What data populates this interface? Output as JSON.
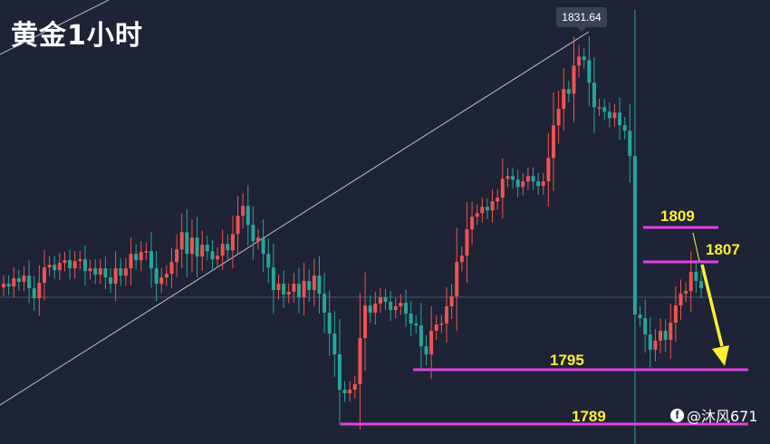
{
  "title": "黄金1小时",
  "peak_label": "1831.64",
  "watermark": {
    "text": "@沐风671",
    "icon": "weibo-icon"
  },
  "colors": {
    "background": "#1e2335",
    "up": "#ef5350",
    "down": "#26a69a",
    "level_line": "#e23fe6",
    "level_text": "#ffee33",
    "arrow": "#ffee33",
    "trendline": "#b9bcc4"
  },
  "chart_data": {
    "type": "candlestick",
    "instrument": "黄金",
    "timeframe": "1小时",
    "ylim": [
      1785,
      1834
    ],
    "peak": 1831.64,
    "levels": [
      {
        "label": "1809",
        "value": 1809
      },
      {
        "label": "1807",
        "value": 1807
      },
      {
        "label": "1795",
        "value": 1795
      },
      {
        "label": "1789",
        "value": 1789
      }
    ],
    "candles_close": [
      1804.5,
      1804.2,
      1805.1,
      1804.7,
      1805.4,
      1804.0,
      1802.9,
      1804.6,
      1806.3,
      1806.6,
      1806.0,
      1806.8,
      1807.1,
      1806.2,
      1807.0,
      1807.2,
      1805.9,
      1806.2,
      1805.5,
      1806.2,
      1805.2,
      1804.5,
      1806.2,
      1805.4,
      1806.2,
      1807.8,
      1807.1,
      1808.0,
      1808.1,
      1806.2,
      1804.5,
      1805.2,
      1805.6,
      1806.9,
      1808.3,
      1810.2,
      1807.8,
      1809.6,
      1807.5,
      1808.8,
      1808.1,
      1807.2,
      1807.6,
      1808.9,
      1808.2,
      1810.0,
      1812.0,
      1813.1,
      1811.0,
      1809.2,
      1809.6,
      1807.8,
      1806.3,
      1803.8,
      1804.5,
      1803.3,
      1803.6,
      1804.5,
      1803.0,
      1804.8,
      1803.8,
      1805.4,
      1803.4,
      1801.3,
      1799.0,
      1796.7,
      1792.8,
      1792.4,
      1792.8,
      1793.4,
      1798.5,
      1802.1,
      1801.3,
      1802.3,
      1803.0,
      1802.5,
      1801.6,
      1802.0,
      1802.4,
      1801.2,
      1800.1,
      1799.9,
      1797.6,
      1796.7,
      1799.3,
      1800.0,
      1800.1,
      1802.0,
      1803.1,
      1806.9,
      1807.6,
      1810.5,
      1811.9,
      1812.3,
      1813.0,
      1812.6,
      1813.6,
      1814.0,
      1816.1,
      1816.4,
      1816.0,
      1815.2,
      1815.8,
      1816.4,
      1815.8,
      1815.3,
      1815.8,
      1818.4,
      1822.0,
      1823.8,
      1826.0,
      1825.5,
      1828.6,
      1829.6,
      1829.2,
      1826.7,
      1824.0,
      1824.0,
      1823.5,
      1822.8,
      1823.4,
      1822.0,
      1821.4,
      1818.6,
      1801.1,
      1800.7,
      1798.9,
      1797.2,
      1798.2,
      1799.3,
      1798.3,
      1800.2,
      1802.1,
      1803.4,
      1803.7,
      1805.8,
      1804.8,
      1804.0
    ]
  }
}
